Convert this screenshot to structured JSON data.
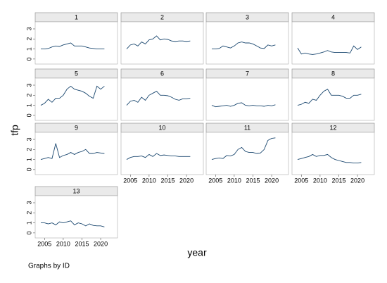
{
  "chart_data": {
    "type": "line",
    "ylabel": "tfp",
    "xlabel": "year",
    "note": "Graphs by ID",
    "color": "#1a476f",
    "x": [
      2004,
      2005,
      2006,
      2007,
      2008,
      2009,
      2010,
      2011,
      2012,
      2013,
      2014,
      2015,
      2016,
      2017,
      2018,
      2019,
      2020,
      2021
    ],
    "xlim": [
      2002.5,
      2024.5
    ],
    "xticks": [
      2005,
      2010,
      2015,
      2020
    ],
    "ylim": [
      -0.5,
      3.7
    ],
    "yticks": [
      0,
      1,
      2,
      3
    ],
    "panels": [
      {
        "title": "1",
        "values": [
          1.0,
          1.0,
          1.05,
          1.2,
          1.3,
          1.25,
          1.4,
          1.5,
          1.6,
          1.3,
          1.3,
          1.3,
          1.2,
          1.1,
          1.05,
          1.0,
          1.0,
          1.0
        ]
      },
      {
        "title": "2",
        "values": [
          1.0,
          1.4,
          1.5,
          1.3,
          1.7,
          1.5,
          1.9,
          2.0,
          2.3,
          1.9,
          2.0,
          1.95,
          1.8,
          1.75,
          1.8,
          1.8,
          1.75,
          1.8
        ]
      },
      {
        "title": "3",
        "values": [
          1.0,
          1.0,
          1.05,
          1.3,
          1.2,
          1.1,
          1.3,
          1.6,
          1.7,
          1.6,
          1.6,
          1.5,
          1.3,
          1.1,
          1.05,
          1.4,
          1.3,
          1.4
        ]
      },
      {
        "title": "4",
        "values": [
          1.1,
          0.5,
          0.6,
          0.5,
          0.45,
          0.5,
          0.6,
          0.7,
          0.85,
          0.7,
          0.65,
          0.65,
          0.65,
          0.65,
          0.6,
          1.3,
          0.95,
          1.2
        ]
      },
      {
        "title": "5",
        "values": [
          1.0,
          1.2,
          1.6,
          1.3,
          1.7,
          1.7,
          2.0,
          2.6,
          2.9,
          2.6,
          2.5,
          2.4,
          2.2,
          1.9,
          1.7,
          2.9,
          2.6,
          2.9
        ]
      },
      {
        "title": "6",
        "values": [
          1.0,
          1.4,
          1.5,
          1.3,
          1.8,
          1.5,
          2.0,
          2.2,
          2.4,
          2.0,
          2.0,
          1.95,
          1.8,
          1.6,
          1.5,
          1.65,
          1.65,
          1.7
        ]
      },
      {
        "title": "7",
        "values": [
          1.0,
          0.85,
          0.9,
          0.95,
          1.0,
          0.9,
          1.0,
          1.2,
          1.25,
          1.0,
          0.95,
          1.0,
          0.95,
          0.95,
          0.9,
          1.0,
          0.95,
          1.05
        ]
      },
      {
        "title": "8",
        "values": [
          1.0,
          1.1,
          1.3,
          1.2,
          1.6,
          1.5,
          2.0,
          2.4,
          2.6,
          2.0,
          2.0,
          2.0,
          1.9,
          1.7,
          1.7,
          2.0,
          2.0,
          2.1
        ]
      },
      {
        "title": "9",
        "values": [
          1.0,
          1.1,
          1.2,
          1.1,
          2.6,
          1.2,
          1.4,
          1.5,
          1.7,
          1.5,
          1.7,
          1.8,
          2.0,
          1.6,
          1.6,
          1.7,
          1.65,
          1.6
        ]
      },
      {
        "title": "10",
        "values": [
          1.0,
          1.2,
          1.3,
          1.3,
          1.35,
          1.2,
          1.5,
          1.3,
          1.6,
          1.4,
          1.45,
          1.4,
          1.35,
          1.35,
          1.3,
          1.3,
          1.3,
          1.3
        ]
      },
      {
        "title": "11",
        "values": [
          1.0,
          1.1,
          1.15,
          1.1,
          1.4,
          1.35,
          1.5,
          2.0,
          2.2,
          1.8,
          1.7,
          1.7,
          1.6,
          1.65,
          2.0,
          2.9,
          3.1,
          3.15
        ]
      },
      {
        "title": "12",
        "values": [
          1.0,
          1.1,
          1.2,
          1.3,
          1.5,
          1.3,
          1.4,
          1.4,
          1.5,
          1.2,
          1.0,
          0.9,
          0.8,
          0.7,
          0.7,
          0.65,
          0.65,
          0.7
        ]
      },
      {
        "title": "13",
        "values": [
          1.0,
          1.0,
          0.9,
          1.0,
          0.8,
          1.1,
          1.0,
          1.1,
          1.2,
          0.8,
          1.0,
          0.9,
          0.7,
          0.9,
          0.75,
          0.7,
          0.7,
          0.6
        ]
      }
    ]
  }
}
